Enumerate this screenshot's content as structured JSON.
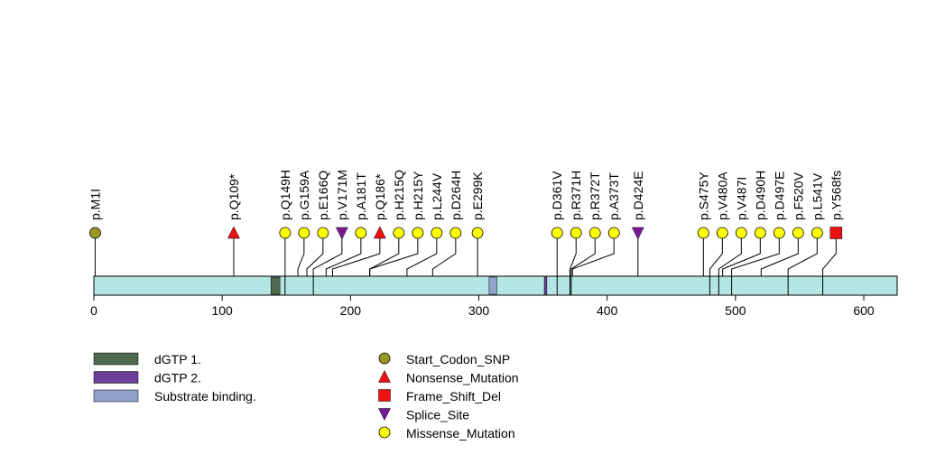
{
  "chart_data": {
    "type": "lollipop",
    "protein_length": 626,
    "x_ticks": [
      0,
      100,
      200,
      300,
      400,
      500,
      600
    ],
    "colors": {
      "backbone": "#b4e5e5",
      "Start_Codon_SNP": "#999922",
      "Nonsense_Mutation": "#ee1111",
      "Frame_Shift_Del": "#ee1111",
      "Splice_Site": "#7a1a9a",
      "Missense_Mutation": "#ffff00"
    },
    "domains": [
      {
        "name": "dGTP 1.",
        "start": 138,
        "end": 145,
        "color": "#4f6b4f"
      },
      {
        "name": "dGTP 2.",
        "start": 351,
        "end": 353,
        "color": "#6b3f9a"
      },
      {
        "name": "Substrate binding.",
        "start": 308,
        "end": 314,
        "color": "#8fa3cc"
      }
    ],
    "markers": [
      {
        "label": "p.Q149H",
        "pos": 149
      },
      {
        "label": "p.V171M",
        "pos": 171
      },
      {
        "label": "p.D361V",
        "pos": 361
      },
      {
        "label": "p.R372T",
        "pos": 372
      },
      {
        "label": "p.Y568fs",
        "pos": 568
      },
      {
        "label": "p.V480A",
        "pos": 480
      },
      {
        "label": "p.V487I",
        "pos": 487
      },
      {
        "label": "p.D497E",
        "pos": 497
      },
      {
        "label": "p.L541V",
        "pos": 541
      },
      {
        "label": "p.R371H",
        "pos": 371
      }
    ],
    "mutations": [
      {
        "label": "p.M1I",
        "pos": 1,
        "type": "Start_Codon_SNP"
      },
      {
        "label": "p.Q109*",
        "pos": 109,
        "type": "Nonsense_Mutation"
      },
      {
        "label": "p.Q149H",
        "pos": 149,
        "type": "Missense_Mutation"
      },
      {
        "label": "p.G159A",
        "pos": 159,
        "type": "Missense_Mutation"
      },
      {
        "label": "p.E166Q",
        "pos": 166,
        "type": "Missense_Mutation"
      },
      {
        "label": "p.V171M",
        "pos": 171,
        "type": "Splice_Site"
      },
      {
        "label": "p.A181T",
        "pos": 181,
        "type": "Missense_Mutation"
      },
      {
        "label": "p.Q186*",
        "pos": 186,
        "type": "Nonsense_Mutation"
      },
      {
        "label": "p.H215Q",
        "pos": 215,
        "type": "Missense_Mutation"
      },
      {
        "label": "p.H215Y",
        "pos": 215,
        "type": "Missense_Mutation"
      },
      {
        "label": "p.L244V",
        "pos": 244,
        "type": "Missense_Mutation"
      },
      {
        "label": "p.D264H",
        "pos": 264,
        "type": "Missense_Mutation"
      },
      {
        "label": "p.E299K",
        "pos": 299,
        "type": "Missense_Mutation"
      },
      {
        "label": "p.D361V",
        "pos": 361,
        "type": "Missense_Mutation"
      },
      {
        "label": "p.R371H",
        "pos": 371,
        "type": "Missense_Mutation"
      },
      {
        "label": "p.R372T",
        "pos": 372,
        "type": "Missense_Mutation"
      },
      {
        "label": "p.A373T",
        "pos": 373,
        "type": "Missense_Mutation"
      },
      {
        "label": "p.D424E",
        "pos": 424,
        "type": "Splice_Site"
      },
      {
        "label": "p.S475Y",
        "pos": 475,
        "type": "Missense_Mutation"
      },
      {
        "label": "p.V480A",
        "pos": 480,
        "type": "Missense_Mutation"
      },
      {
        "label": "p.V487I",
        "pos": 487,
        "type": "Missense_Mutation"
      },
      {
        "label": "p.D490H",
        "pos": 490,
        "type": "Missense_Mutation"
      },
      {
        "label": "p.D497E",
        "pos": 497,
        "type": "Missense_Mutation"
      },
      {
        "label": "p.F520V",
        "pos": 520,
        "type": "Missense_Mutation"
      },
      {
        "label": "p.L541V",
        "pos": 541,
        "type": "Missense_Mutation"
      },
      {
        "label": "p.Y568fs",
        "pos": 568,
        "type": "Frame_Shift_Del"
      }
    ],
    "legend_domains": [
      "dGTP 1.",
      "dGTP 2.",
      "Substrate binding."
    ],
    "legend_mutation_types": [
      "Start_Codon_SNP",
      "Nonsense_Mutation",
      "Frame_Shift_Del",
      "Splice_Site",
      "Missense_Mutation"
    ]
  }
}
